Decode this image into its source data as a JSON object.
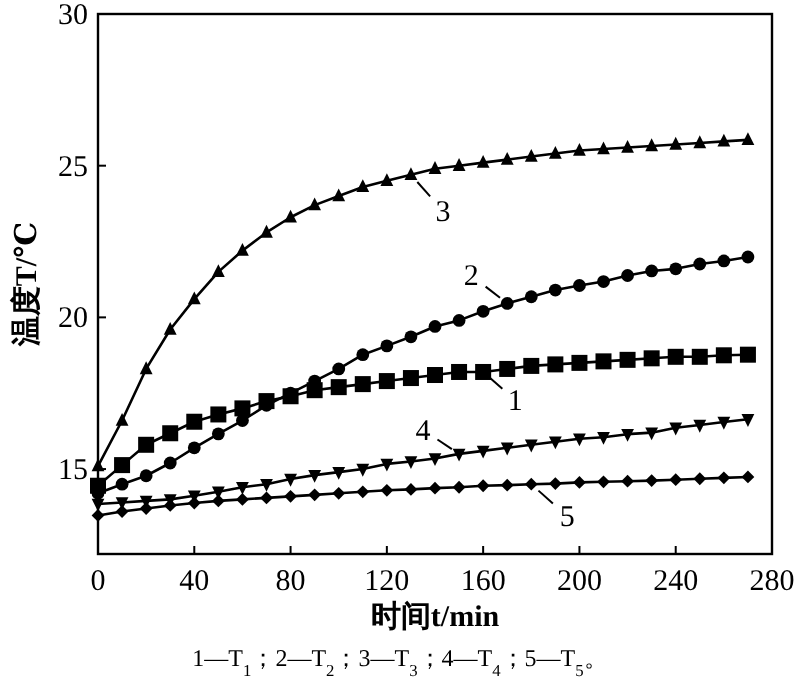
{
  "chart_data": {
    "type": "line",
    "xlabel": "时间t/min",
    "ylabel": "温度T/℃",
    "x": [
      0,
      10,
      20,
      30,
      40,
      50,
      60,
      70,
      80,
      90,
      100,
      110,
      120,
      130,
      140,
      150,
      160,
      170,
      180,
      190,
      200,
      210,
      220,
      230,
      240,
      250,
      260,
      270
    ],
    "xlim": [
      0,
      280
    ],
    "xticks": [
      0,
      40,
      80,
      120,
      160,
      200,
      240,
      280
    ],
    "ylim": [
      12.2,
      30
    ],
    "yticks": [
      15,
      20,
      25,
      30
    ],
    "grid": false,
    "legend": "right",
    "line_style": "solid",
    "series": [
      {
        "name": "1",
        "color": "#000000",
        "marker": "square",
        "values": [
          14.45,
          15.13,
          15.8,
          16.18,
          16.56,
          16.8,
          17.0,
          17.24,
          17.4,
          17.6,
          17.7,
          17.8,
          17.9,
          18.0,
          18.1,
          18.2,
          18.2,
          18.3,
          18.4,
          18.45,
          18.5,
          18.55,
          18.6,
          18.65,
          18.7,
          18.7,
          18.75,
          18.77
        ]
      },
      {
        "name": "2",
        "color": "#000000",
        "marker": "circle",
        "values": [
          14.2,
          14.5,
          14.78,
          15.2,
          15.7,
          16.16,
          16.6,
          17.1,
          17.5,
          17.9,
          18.3,
          18.77,
          19.06,
          19.36,
          19.7,
          19.9,
          20.2,
          20.46,
          20.68,
          20.9,
          21.05,
          21.18,
          21.38,
          21.53,
          21.6,
          21.76,
          21.86,
          21.99
        ]
      },
      {
        "name": "3",
        "color": "#000000",
        "marker": "triangle",
        "values": [
          15.1,
          16.6,
          18.3,
          19.6,
          20.6,
          21.5,
          22.2,
          22.8,
          23.3,
          23.7,
          24.0,
          24.3,
          24.5,
          24.7,
          24.9,
          25.0,
          25.1,
          25.2,
          25.3,
          25.4,
          25.5,
          25.55,
          25.6,
          25.65,
          25.7,
          25.75,
          25.8,
          25.85
        ]
      },
      {
        "name": "4",
        "color": "#000000",
        "marker": "triangle-down",
        "values": [
          13.85,
          13.9,
          13.95,
          14.0,
          14.12,
          14.25,
          14.4,
          14.5,
          14.67,
          14.8,
          14.9,
          15.0,
          15.17,
          15.25,
          15.35,
          15.5,
          15.6,
          15.7,
          15.8,
          15.9,
          16.0,
          16.05,
          16.15,
          16.2,
          16.36,
          16.45,
          16.55,
          16.64
        ]
      },
      {
        "name": "5",
        "color": "#000000",
        "marker": "diamond",
        "values": [
          13.47,
          13.6,
          13.7,
          13.8,
          13.88,
          13.95,
          14.0,
          14.05,
          14.1,
          14.15,
          14.2,
          14.25,
          14.3,
          14.33,
          14.37,
          14.4,
          14.45,
          14.47,
          14.5,
          14.52,
          14.56,
          14.58,
          14.6,
          14.62,
          14.65,
          14.68,
          14.71,
          14.74
        ]
      }
    ],
    "annotations": [
      "1—T$_{1}$；2—T$_{2}$；3—T$_{3}$；4—T$_{4}$；5—T$_{5}$。"
    ]
  }
}
